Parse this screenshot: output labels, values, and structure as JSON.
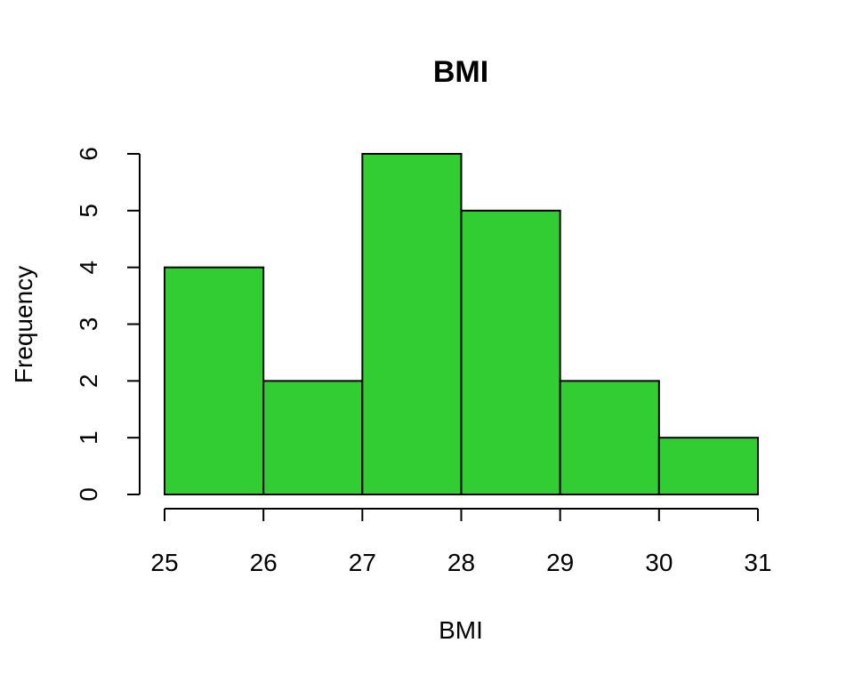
{
  "chart_data": {
    "type": "bar",
    "title": "BMI",
    "xlabel": "BMI",
    "ylabel": "Frequency",
    "bins": [
      {
        "from": 25,
        "to": 26,
        "count": 4
      },
      {
        "from": 26,
        "to": 27,
        "count": 2
      },
      {
        "from": 27,
        "to": 28,
        "count": 6
      },
      {
        "from": 28,
        "to": 29,
        "count": 5
      },
      {
        "from": 29,
        "to": 30,
        "count": 2
      },
      {
        "from": 30,
        "to": 31,
        "count": 1
      }
    ],
    "x_ticks": [
      "25",
      "26",
      "27",
      "28",
      "29",
      "30",
      "31"
    ],
    "y_ticks": [
      "0",
      "1",
      "2",
      "3",
      "4",
      "5",
      "6"
    ],
    "xlim": [
      25,
      31
    ],
    "ylim": [
      0,
      6
    ],
    "grid": false,
    "bar_color": "#32CD32"
  }
}
